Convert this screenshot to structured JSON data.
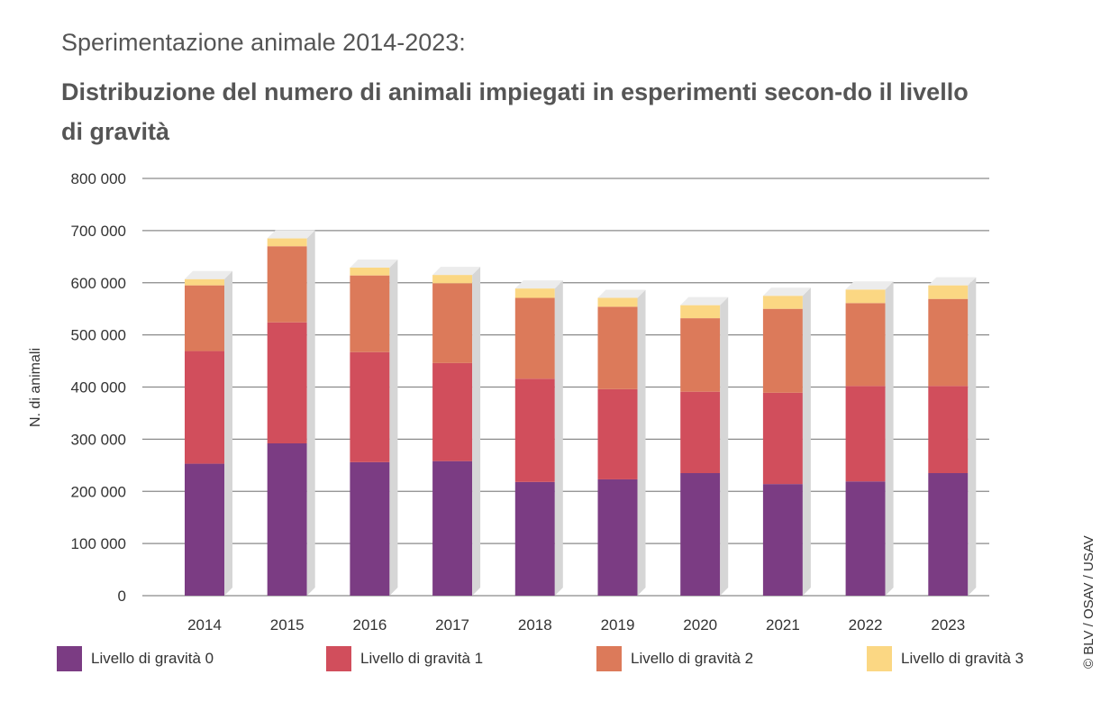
{
  "title": "Sperimentazione animale 2014-2023:",
  "subtitle": "Distribuzione del numero di animali impiegati in esperimenti secon-do il livello di gravità",
  "credit": "© BLV / OSAV / USAV",
  "colors": {
    "level0": "#7b3c83",
    "level1": "#d14e5c",
    "level2": "#dc7a5a",
    "level3": "#fbd783",
    "grid": "#8a8a8a",
    "side": "#d6d6d6",
    "top": "#ececec"
  },
  "chart_data": {
    "type": "bar",
    "stacked": true,
    "title": "Distribuzione del numero di animali impiegati in esperimenti secondo il livello di gravità",
    "xlabel": "",
    "ylabel": "N. di animali",
    "ylim": [
      0,
      800000
    ],
    "yticks": [
      0,
      100000,
      200000,
      300000,
      400000,
      500000,
      600000,
      700000,
      800000
    ],
    "ytick_labels": [
      "0",
      "100 000",
      "200 000",
      "300 000",
      "400 000",
      "500 000",
      "600 000",
      "700 000",
      "800 000"
    ],
    "categories": [
      "2014",
      "2015",
      "2016",
      "2017",
      "2018",
      "2019",
      "2020",
      "2021",
      "2022",
      "2023"
    ],
    "series": [
      {
        "name": "Livello di gravità 0",
        "values": [
          253000,
          292000,
          256000,
          258000,
          218000,
          223000,
          235000,
          214000,
          219000,
          235000
        ]
      },
      {
        "name": "Livello di gravità 1",
        "values": [
          216000,
          232000,
          211000,
          188000,
          198000,
          173000,
          156000,
          175000,
          183000,
          167000
        ]
      },
      {
        "name": "Livello di gravità 2",
        "values": [
          126000,
          146000,
          147000,
          153000,
          155000,
          158000,
          141000,
          161000,
          159000,
          167000
        ]
      },
      {
        "name": "Livello di gravità 3",
        "values": [
          12000,
          15000,
          15000,
          16000,
          18000,
          17000,
          25000,
          25000,
          26000,
          26000
        ]
      }
    ],
    "legend_position": "bottom"
  }
}
